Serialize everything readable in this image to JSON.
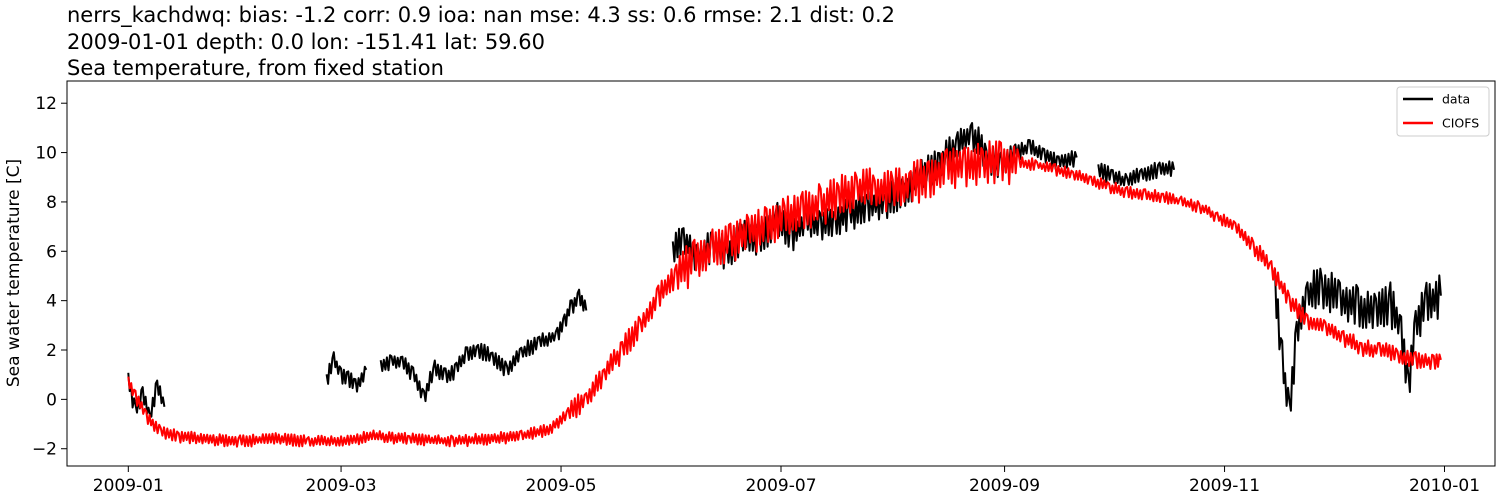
{
  "chart_data": {
    "type": "line",
    "title_lines": [
      "nerrs_kachdwq: bias: -1.2  corr: 0.9  ioa: nan  mse: 4.3  ss: 0.6  rmse: 2.1  dist: 0.2",
      "2009-01-01 depth: 0.0 lon: -151.41 lat: 59.60",
      "Sea temperature, from fixed station"
    ],
    "xlabel": "",
    "ylabel": "Sea water temperature [C]",
    "xlim": [
      "2008-12-15",
      "2010-01-15"
    ],
    "ylim": [
      -2.7,
      12.9
    ],
    "x_ticks": [
      "2009-01",
      "2009-03",
      "2009-05",
      "2009-07",
      "2009-09",
      "2009-11",
      "2010-01"
    ],
    "y_ticks": [
      -2,
      0,
      2,
      4,
      6,
      8,
      10,
      12
    ],
    "grid": false,
    "legend_position": "top-right",
    "series": [
      {
        "name": "data",
        "color": "#000000",
        "segments": [
          [
            [
              "2009-01-01",
              0.8
            ],
            [
              "2009-01-03",
              -0.5
            ],
            [
              "2009-01-05",
              0.2
            ],
            [
              "2009-01-07",
              -0.8
            ],
            [
              "2009-01-09",
              0.6
            ],
            [
              "2009-01-11",
              -0.3
            ]
          ],
          [
            [
              "2009-02-25",
              0.8
            ],
            [
              "2009-02-27",
              1.6
            ],
            [
              "2009-03-01",
              1.0
            ],
            [
              "2009-03-03",
              0.9
            ],
            [
              "2009-03-05",
              0.5
            ],
            [
              "2009-03-08",
              1.2
            ]
          ],
          [
            [
              "2009-03-12",
              1.3
            ],
            [
              "2009-03-15",
              1.6
            ],
            [
              "2009-03-18",
              1.5
            ],
            [
              "2009-03-21",
              1.0
            ],
            [
              "2009-03-24",
              0.1
            ],
            [
              "2009-03-27",
              1.3
            ],
            [
              "2009-03-30",
              0.9
            ],
            [
              "2009-04-02",
              1.2
            ],
            [
              "2009-04-05",
              1.9
            ],
            [
              "2009-04-08",
              2.0
            ],
            [
              "2009-04-12",
              1.7
            ],
            [
              "2009-04-16",
              1.2
            ],
            [
              "2009-04-20",
              1.9
            ],
            [
              "2009-04-25",
              2.3
            ],
            [
              "2009-04-30",
              2.6
            ],
            [
              "2009-05-02",
              3.2
            ],
            [
              "2009-05-04",
              3.8
            ],
            [
              "2009-05-06",
              4.1
            ],
            [
              "2009-05-08",
              3.6
            ]
          ],
          [
            [
              "2009-06-01",
              6.0
            ],
            [
              "2009-06-04",
              6.6
            ],
            [
              "2009-06-08",
              5.6
            ],
            [
              "2009-06-12",
              6.3
            ],
            [
              "2009-06-16",
              5.9
            ],
            [
              "2009-06-20",
              6.6
            ],
            [
              "2009-06-25",
              6.5
            ],
            [
              "2009-06-30",
              7.3
            ],
            [
              "2009-07-04",
              6.6
            ],
            [
              "2009-07-08",
              7.2
            ],
            [
              "2009-07-12",
              7.0
            ],
            [
              "2009-07-16",
              7.2
            ],
            [
              "2009-07-20",
              7.5
            ],
            [
              "2009-07-25",
              7.8
            ],
            [
              "2009-07-30",
              8.0
            ],
            [
              "2009-08-04",
              8.4
            ],
            [
              "2009-08-09",
              9.0
            ],
            [
              "2009-08-14",
              9.6
            ],
            [
              "2009-08-19",
              10.3
            ],
            [
              "2009-08-23",
              10.8
            ],
            [
              "2009-08-27",
              9.8
            ],
            [
              "2009-08-31",
              9.4
            ],
            [
              "2009-09-04",
              10.0
            ],
            [
              "2009-09-08",
              10.2
            ],
            [
              "2009-09-12",
              9.9
            ],
            [
              "2009-09-16",
              9.6
            ],
            [
              "2009-09-21",
              9.8
            ]
          ],
          [
            [
              "2009-09-27",
              9.3
            ],
            [
              "2009-10-01",
              9.0
            ],
            [
              "2009-10-05",
              8.8
            ],
            [
              "2009-10-09",
              9.1
            ],
            [
              "2009-10-14",
              9.3
            ],
            [
              "2009-10-18",
              9.3
            ]
          ],
          [
            [
              "2009-11-15",
              4.5
            ],
            [
              "2009-11-17",
              1.5
            ],
            [
              "2009-11-19",
              -0.5
            ],
            [
              "2009-11-21",
              2.5
            ],
            [
              "2009-11-24",
              4.2
            ],
            [
              "2009-11-28",
              4.5
            ],
            [
              "2009-12-03",
              4.1
            ],
            [
              "2009-12-08",
              3.8
            ],
            [
              "2009-12-13",
              3.4
            ],
            [
              "2009-12-17",
              3.9
            ],
            [
              "2009-12-20",
              2.8
            ],
            [
              "2009-12-22",
              0.5
            ],
            [
              "2009-12-24",
              3.0
            ],
            [
              "2009-12-27",
              4.0
            ],
            [
              "2009-12-31",
              4.2
            ]
          ]
        ]
      },
      {
        "name": "CIOFS",
        "color": "#ff0000",
        "segments": [
          [
            [
              "2009-01-01",
              0.7
            ],
            [
              "2009-01-03",
              0.1
            ],
            [
              "2009-01-06",
              -0.7
            ],
            [
              "2009-01-10",
              -1.3
            ],
            [
              "2009-01-15",
              -1.5
            ],
            [
              "2009-01-22",
              -1.6
            ],
            [
              "2009-02-01",
              -1.7
            ],
            [
              "2009-02-10",
              -1.6
            ],
            [
              "2009-02-20",
              -1.7
            ],
            [
              "2009-03-01",
              -1.7
            ],
            [
              "2009-03-10",
              -1.5
            ],
            [
              "2009-03-20",
              -1.6
            ],
            [
              "2009-04-01",
              -1.7
            ],
            [
              "2009-04-10",
              -1.6
            ],
            [
              "2009-04-20",
              -1.5
            ],
            [
              "2009-04-28",
              -1.2
            ],
            [
              "2009-05-03",
              -0.6
            ],
            [
              "2009-05-08",
              0.0
            ],
            [
              "2009-05-13",
              1.0
            ],
            [
              "2009-05-18",
              2.0
            ],
            [
              "2009-05-23",
              3.0
            ],
            [
              "2009-05-28",
              4.2
            ],
            [
              "2009-06-02",
              5.0
            ],
            [
              "2009-06-07",
              5.6
            ],
            [
              "2009-06-12",
              6.0
            ],
            [
              "2009-06-17",
              6.4
            ],
            [
              "2009-06-22",
              6.7
            ],
            [
              "2009-06-27",
              7.0
            ],
            [
              "2009-07-02",
              7.3
            ],
            [
              "2009-07-07",
              7.6
            ],
            [
              "2009-07-12",
              7.9
            ],
            [
              "2009-07-17",
              8.2
            ],
            [
              "2009-07-22",
              8.5
            ],
            [
              "2009-07-27",
              8.5
            ],
            [
              "2009-08-01",
              8.5
            ],
            [
              "2009-08-06",
              8.7
            ],
            [
              "2009-08-11",
              9.0
            ],
            [
              "2009-08-16",
              9.3
            ],
            [
              "2009-08-21",
              9.5
            ],
            [
              "2009-08-26",
              9.6
            ],
            [
              "2009-08-31",
              9.6
            ],
            [
              "2009-09-05",
              9.6
            ],
            [
              "2009-09-10",
              9.5
            ],
            [
              "2009-09-15",
              9.3
            ],
            [
              "2009-09-20",
              9.1
            ],
            [
              "2009-09-25",
              8.9
            ],
            [
              "2009-09-30",
              8.6
            ],
            [
              "2009-10-05",
              8.4
            ],
            [
              "2009-10-10",
              8.3
            ],
            [
              "2009-10-15",
              8.2
            ],
            [
              "2009-10-20",
              8.0
            ],
            [
              "2009-10-25",
              7.8
            ],
            [
              "2009-10-30",
              7.4
            ],
            [
              "2009-11-04",
              7.0
            ],
            [
              "2009-11-09",
              6.2
            ],
            [
              "2009-11-14",
              5.3
            ],
            [
              "2009-11-19",
              4.0
            ],
            [
              "2009-11-24",
              3.2
            ],
            [
              "2009-11-29",
              2.9
            ],
            [
              "2009-12-04",
              2.5
            ],
            [
              "2009-12-09",
              2.1
            ],
            [
              "2009-12-14",
              2.0
            ],
            [
              "2009-12-19",
              1.8
            ],
            [
              "2009-12-24",
              1.6
            ],
            [
              "2009-12-29",
              1.5
            ],
            [
              "2009-12-31",
              1.6
            ]
          ]
        ]
      }
    ]
  }
}
